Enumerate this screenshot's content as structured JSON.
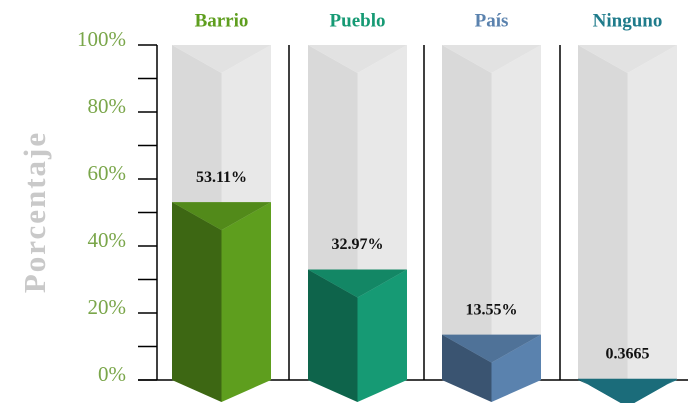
{
  "chart_data": {
    "type": "bar",
    "categories": [
      "Barrio",
      "Pueblo",
      "País",
      "Ninguno"
    ],
    "values": [
      53.11,
      32.97,
      13.55,
      0.3665
    ],
    "value_labels": [
      "53.11%",
      "32.97%",
      "13.55%",
      "0.3665"
    ],
    "colors": [
      "#5e9e1e",
      "#169a74",
      "#5a82ae",
      "#1f7b8b"
    ],
    "ylabel": "Porcentaje",
    "ylim": [
      0,
      100
    ],
    "yticks": [
      {
        "value": 0,
        "label": "0%"
      },
      {
        "value": 20,
        "label": "20%"
      },
      {
        "value": 40,
        "label": "40%"
      },
      {
        "value": 60,
        "label": "60%"
      },
      {
        "value": 80,
        "label": "80%"
      },
      {
        "value": 100,
        "label": "100%"
      }
    ],
    "yminor_ticks": [
      10,
      30,
      50,
      70,
      90
    ]
  }
}
